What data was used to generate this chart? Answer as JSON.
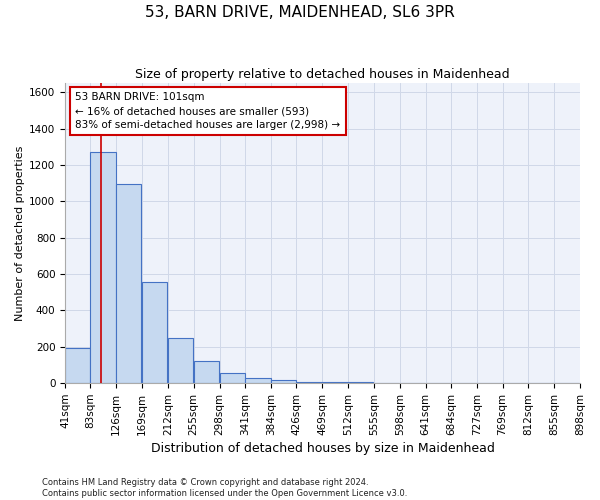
{
  "title": "53, BARN DRIVE, MAIDENHEAD, SL6 3PR",
  "subtitle": "Size of property relative to detached houses in Maidenhead",
  "xlabel": "Distribution of detached houses by size in Maidenhead",
  "ylabel": "Number of detached properties",
  "annotation_line1": "53 BARN DRIVE: 101sqm",
  "annotation_line2": "← 16% of detached houses are smaller (593)",
  "annotation_line3": "83% of semi-detached houses are larger (2,998) →",
  "footer_line1": "Contains HM Land Registry data © Crown copyright and database right 2024.",
  "footer_line2": "Contains public sector information licensed under the Open Government Licence v3.0.",
  "property_size": 101,
  "bin_edges": [
    41,
    83,
    126,
    169,
    212,
    255,
    298,
    341,
    384,
    426,
    469,
    512,
    555,
    598,
    641,
    684,
    727,
    769,
    812,
    855,
    898
  ],
  "bar_values": [
    193,
    1270,
    1095,
    555,
    248,
    120,
    57,
    30,
    20,
    8,
    5,
    4,
    3,
    2,
    2,
    1,
    1,
    1,
    1,
    1
  ],
  "bar_color": "#c6d9f0",
  "bar_edge_color": "#4472c4",
  "bar_linewidth": 0.8,
  "vline_color": "#cc0000",
  "vline_x": 101,
  "annotation_box_color": "#cc0000",
  "ylim": [
    0,
    1650
  ],
  "yticks": [
    0,
    200,
    400,
    600,
    800,
    1000,
    1200,
    1400,
    1600
  ],
  "grid_color": "#d0d8e8",
  "background_color": "#eef2fa",
  "title_fontsize": 11,
  "subtitle_fontsize": 9,
  "xlabel_fontsize": 9,
  "ylabel_fontsize": 8,
  "tick_fontsize": 7.5,
  "annotation_fontsize": 7.5,
  "footer_fontsize": 6
}
